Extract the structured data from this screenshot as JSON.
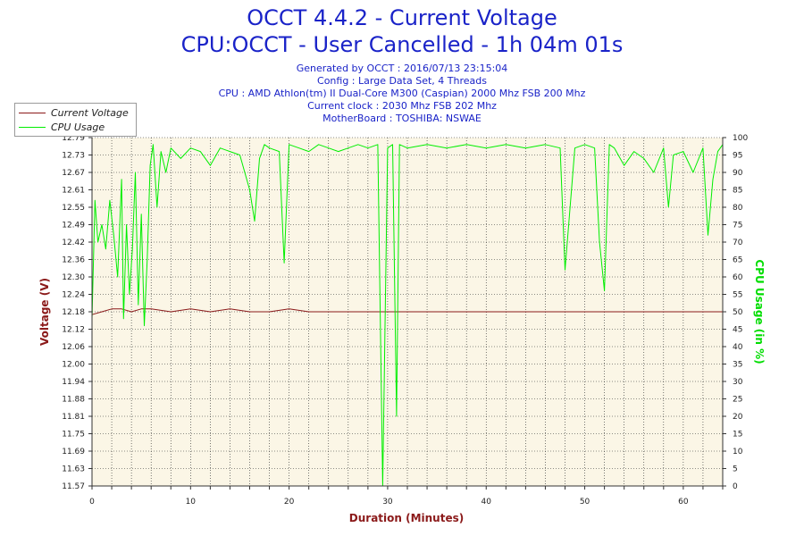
{
  "header": {
    "title_line1": "OCCT 4.4.2 - Current Voltage",
    "title_line2": "CPU:OCCT - User Cancelled - 1h 04m 01s",
    "generated": "Generated by OCCT : 2016/07/13 23:15:04",
    "config": "Config : Large Data Set, 4 Threads",
    "cpu": "CPU : AMD Athlon(tm) II Dual-Core M300 (Caspian) 2000 Mhz FSB 200 Mhz",
    "clock": "Current clock : 2030 Mhz FSB 202 Mhz",
    "motherboard": "MotherBoard : TOSHIBA: NSWAE"
  },
  "legend": {
    "voltage_label": "Current Voltage",
    "cpu_label": "CPU Usage"
  },
  "colors": {
    "voltage": "#8b1a1a",
    "cpu": "#00ee00",
    "plot_bg": "#fbf6e6",
    "grid": "#222222"
  },
  "chart_data": {
    "type": "line",
    "xlabel": "Duration (Minutes)",
    "ylabel": "Voltage (V)",
    "y2label": "CPU Usage (in %)",
    "xlim": [
      0,
      64
    ],
    "ylim": [
      11.57,
      12.79
    ],
    "y2lim": [
      0,
      100
    ],
    "x_ticks": [
      0,
      10,
      20,
      30,
      40,
      50,
      60
    ],
    "y_ticks": [
      "11.57",
      "11.63",
      "11.69",
      "11.75",
      "11.81",
      "11.88",
      "11.94",
      "12.00",
      "12.06",
      "12.12",
      "12.18",
      "12.24",
      "12.30",
      "12.36",
      "12.42",
      "12.49",
      "12.55",
      "12.61",
      "12.67",
      "12.73",
      "12.79"
    ],
    "y2_ticks": [
      0,
      5,
      10,
      15,
      20,
      25,
      30,
      35,
      40,
      45,
      50,
      55,
      60,
      65,
      70,
      75,
      80,
      85,
      90,
      95,
      100
    ],
    "grid": "dotted",
    "series": [
      {
        "name": "Current Voltage",
        "axis": "left",
        "x": [
          0,
          1,
          2,
          3,
          4,
          5,
          6,
          8,
          10,
          12,
          14,
          16,
          18,
          20,
          22,
          24,
          26,
          28,
          30,
          32,
          34,
          36,
          38,
          40,
          42,
          44,
          46,
          48,
          50,
          52,
          54,
          56,
          58,
          60,
          62,
          64
        ],
        "y": [
          12.17,
          12.18,
          12.19,
          12.19,
          12.18,
          12.19,
          12.19,
          12.18,
          12.19,
          12.18,
          12.19,
          12.18,
          12.18,
          12.19,
          12.18,
          12.18,
          12.18,
          12.18,
          12.18,
          12.18,
          12.18,
          12.18,
          12.18,
          12.18,
          12.18,
          12.18,
          12.18,
          12.18,
          12.18,
          12.18,
          12.18,
          12.18,
          12.18,
          12.18,
          12.18,
          12.18
        ]
      },
      {
        "name": "CPU Usage",
        "axis": "right",
        "x": [
          0,
          0.3,
          0.6,
          1.0,
          1.4,
          1.8,
          2.2,
          2.6,
          3.0,
          3.2,
          3.5,
          3.8,
          4.1,
          4.4,
          4.7,
          5.0,
          5.3,
          5.6,
          5.9,
          6.2,
          6.6,
          7.0,
          7.5,
          8.0,
          9.0,
          10.0,
          11.0,
          12.0,
          13.0,
          14.0,
          15.0,
          16.0,
          16.5,
          17.0,
          17.5,
          18.0,
          19.0,
          19.5,
          20.0,
          21.0,
          22.0,
          23.0,
          24.0,
          25.0,
          26.0,
          27.0,
          28.0,
          29.0,
          29.5,
          30.0,
          30.5,
          30.9,
          31.2,
          32.0,
          34.0,
          36.0,
          38.0,
          40.0,
          42.0,
          44.0,
          46.0,
          47.5,
          48.0,
          49.0,
          50.0,
          51.0,
          51.5,
          52.0,
          52.5,
          53.0,
          54.0,
          55.0,
          56.0,
          57.0,
          58.0,
          58.5,
          59.0,
          60.0,
          61.0,
          62.0,
          62.5,
          63.0,
          63.5,
          64.0
        ],
        "y": [
          48,
          82,
          70,
          75,
          68,
          82,
          72,
          60,
          88,
          48,
          75,
          55,
          68,
          90,
          52,
          78,
          46,
          65,
          92,
          98,
          80,
          96,
          90,
          97,
          94,
          97,
          96,
          92,
          97,
          96,
          95,
          85,
          76,
          94,
          98,
          97,
          96,
          64,
          98,
          97,
          96,
          98,
          97,
          96,
          97,
          98,
          97,
          98,
          0,
          97,
          98,
          20,
          98,
          97,
          98,
          97,
          98,
          97,
          98,
          97,
          98,
          97,
          62,
          97,
          98,
          97,
          70,
          56,
          98,
          97,
          92,
          96,
          94,
          90,
          97,
          80,
          95,
          96,
          90,
          97,
          72,
          88,
          96,
          98
        ]
      }
    ]
  }
}
